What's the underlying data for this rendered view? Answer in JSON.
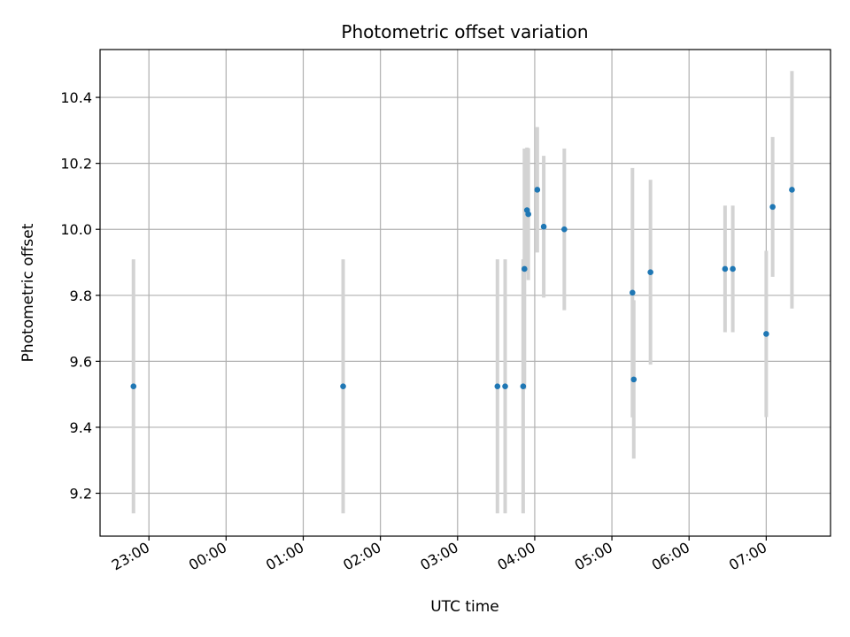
{
  "chart_data": {
    "type": "scatter",
    "title": "Photometric offset variation",
    "xlabel": "UTC time",
    "ylabel": "Photometric offset",
    "x_unit": "hours (UTC, continuous across midnight)",
    "xlim": [
      "22:22",
      "07:50"
    ],
    "ylim": [
      9.07,
      10.545
    ],
    "x_ticks": [
      "23:00",
      "00:00",
      "01:00",
      "02:00",
      "03:00",
      "04:00",
      "05:00",
      "06:00",
      "07:00"
    ],
    "y_ticks": [
      "9.2",
      "9.4",
      "9.6",
      "9.8",
      "10.0",
      "10.2",
      "10.4"
    ],
    "grid": true,
    "point_color": "#1f77b4",
    "errorbar_color": "#d3d3d3",
    "points": [
      {
        "x": "22:48",
        "y": 9.524,
        "err": 0.385
      },
      {
        "x": "01:31",
        "y": 9.524,
        "err": 0.385
      },
      {
        "x": "03:31",
        "y": 9.524,
        "err": 0.385
      },
      {
        "x": "03:37",
        "y": 9.524,
        "err": 0.385
      },
      {
        "x": "03:51",
        "y": 9.524,
        "err": 0.385
      },
      {
        "x": "03:52",
        "y": 9.88,
        "err": 0.365
      },
      {
        "x": "03:54",
        "y": 10.058,
        "err": 0.19
      },
      {
        "x": "03:55",
        "y": 10.046,
        "err": 0.2
      },
      {
        "x": "04:02",
        "y": 10.12,
        "err": 0.19
      },
      {
        "x": "04:07",
        "y": 10.008,
        "err": 0.215
      },
      {
        "x": "04:23",
        "y": 10.0,
        "err": 0.245
      },
      {
        "x": "05:16",
        "y": 9.808,
        "err": 0.378
      },
      {
        "x": "05:17",
        "y": 9.545,
        "err": 0.24
      },
      {
        "x": "05:30",
        "y": 9.87,
        "err": 0.28
      },
      {
        "x": "06:28",
        "y": 9.88,
        "err": 0.192
      },
      {
        "x": "06:34",
        "y": 9.88,
        "err": 0.192
      },
      {
        "x": "07:00",
        "y": 9.683,
        "err": 0.252
      },
      {
        "x": "07:05",
        "y": 10.068,
        "err": 0.212
      },
      {
        "x": "07:20",
        "y": 10.12,
        "err": 0.36
      }
    ]
  }
}
